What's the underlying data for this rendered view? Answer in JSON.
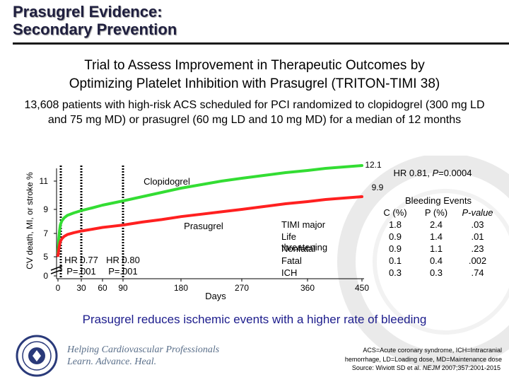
{
  "header": {
    "title_line1": "Prasugrel Evidence:",
    "title_line2": "Secondary Prevention"
  },
  "subtitle": {
    "line1": "Trial to Assess Improvement in Therapeutic Outcomes by",
    "line2": "Optimizing Platelet Inhibition with Prasugrel (TRITON-TIMI 38)"
  },
  "description": "13,608 patients with high-risk ACS scheduled for PCI randomized to clopidogrel (300 mg LD and 75 mg MD) or prasugrel (60 mg LD and 10 mg MD) for a median of 12 months",
  "chart_data": {
    "type": "line",
    "ylabel": "CV death, MI, or stroke %",
    "xlabel": "Days",
    "x_ticks": [
      0,
      30,
      60,
      90,
      180,
      270,
      360,
      450
    ],
    "y_ticks": [
      0,
      5,
      7,
      9,
      11
    ],
    "y_axis_break": true,
    "xlim": [
      0,
      450
    ],
    "colors": {
      "clopidogrel": "#33dd33",
      "prasugrel": "#ff2020"
    },
    "series": [
      {
        "name": "Clopidogrel",
        "x": [
          0,
          1,
          2,
          3,
          5,
          8,
          12,
          20,
          30,
          45,
          60,
          75,
          90,
          120,
          150,
          180,
          210,
          240,
          270,
          300,
          330,
          360,
          390,
          420,
          450
        ],
        "y": [
          5.3,
          6.5,
          7.2,
          7.7,
          8.05,
          8.3,
          8.5,
          8.7,
          8.9,
          9.1,
          9.3,
          9.45,
          9.6,
          9.9,
          10.2,
          10.5,
          10.75,
          11.0,
          11.2,
          11.4,
          11.6,
          11.75,
          11.9,
          12.0,
          12.1
        ],
        "end_label": "12.1"
      },
      {
        "name": "Prasugrel",
        "x": [
          0,
          1,
          2,
          3,
          5,
          8,
          12,
          20,
          30,
          45,
          60,
          75,
          90,
          120,
          150,
          180,
          210,
          240,
          270,
          300,
          330,
          360,
          390,
          420,
          450
        ],
        "y": [
          5.1,
          5.6,
          6.0,
          6.3,
          6.55,
          6.75,
          6.9,
          7.05,
          7.2,
          7.35,
          7.5,
          7.6,
          7.7,
          7.95,
          8.15,
          8.4,
          8.6,
          8.8,
          9.0,
          9.2,
          9.4,
          9.55,
          9.7,
          9.8,
          9.9
        ],
        "end_label": "9.9"
      }
    ],
    "vlines": [
      {
        "x": 3,
        "label_top": "",
        "label_bottom": ""
      },
      {
        "x": 30,
        "label_top": "HR 0.77",
        "label_bottom": "P=.001"
      },
      {
        "x": 90,
        "label_top": "HR 0.80",
        "label_bottom": "P=.001"
      }
    ],
    "hr_overall": {
      "text": "HR 0.81, ",
      "p_label": "P",
      "p_value": "=0.0004"
    }
  },
  "bleeding": {
    "title": "Bleeding Events",
    "col_c": "C (%)",
    "col_p": "P (%)",
    "col_pval": "P-value",
    "rows": [
      {
        "label": "TIMI major",
        "c": "1.8",
        "p": "2.4",
        "pval": ".03"
      },
      {
        "label": "Life threatening",
        "c": "0.9",
        "p": "1.4",
        "pval": ".01"
      },
      {
        "label": "Nonfatal",
        "c": "0.9",
        "p": "1.1",
        "pval": ".23"
      },
      {
        "label": "Fatal",
        "c": "0.1",
        "p": "0.4",
        "pval": ".002"
      },
      {
        "label": "ICH",
        "c": "0.3",
        "p": "0.3",
        "pval": ".74"
      }
    ]
  },
  "conclusion": "Prasugrel reduces ischemic events with a higher rate of bleeding",
  "footnote": {
    "line1": "ACS=Acute coronary syndrome, ICH=Intracranial",
    "line2": "hemorrhage, LD=Loading dose, MD=Maintenance dose"
  },
  "source": {
    "prefix": "Source: Wiviott SD et al. ",
    "journal": "NEJM",
    "suffix": " 2007;357:2001-2015"
  },
  "branding": {
    "tagline_line1": "Helping Cardiovascular Professionals",
    "tagline_line2": "Learn. Advance. Heal.",
    "logo_icon": "american-college-of-cardiology-seal",
    "watermark_icon": "american-college-of-cardiology-watermark"
  }
}
